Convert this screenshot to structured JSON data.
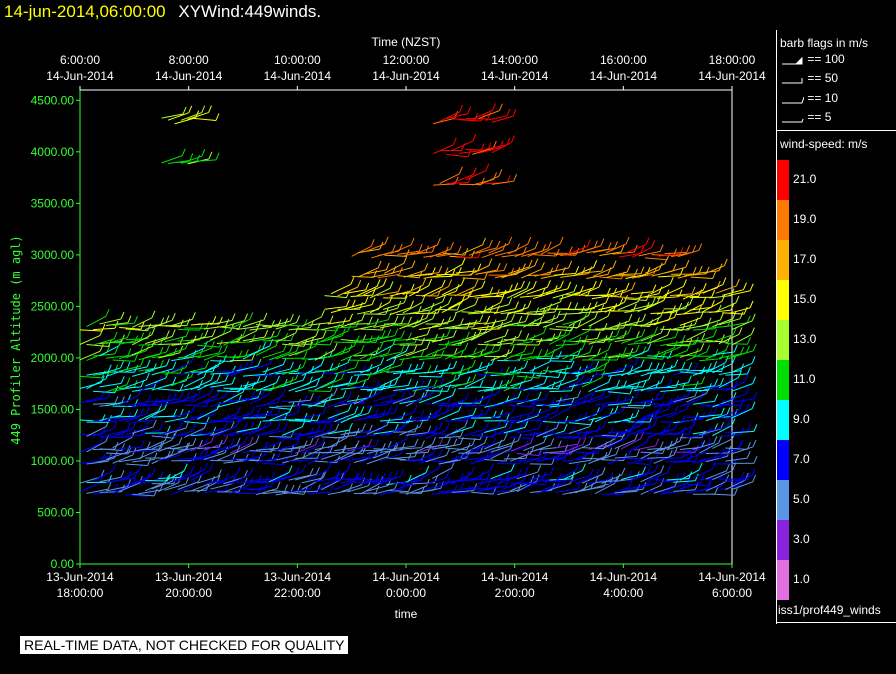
{
  "header": {
    "date": "14-jun-2014,06:00:00",
    "title": "XYWind:449winds."
  },
  "legend": {
    "barb_title": "barb flags in m/s",
    "barb_keys": [
      "== 100",
      "== 50",
      "== 10",
      "== 5"
    ],
    "speed_title": "wind-speed: m/s",
    "speed_levels": [
      {
        "label": "21.0",
        "color": "#ff0000"
      },
      {
        "label": "19.0",
        "color": "#ff7a00"
      },
      {
        "label": "17.0",
        "color": "#ffb000"
      },
      {
        "label": "15.0",
        "color": "#ffff00"
      },
      {
        "label": "13.0",
        "color": "#a8ff30"
      },
      {
        "label": "11.0",
        "color": "#00e000"
      },
      {
        "label": "9.0",
        "color": "#00ffff"
      },
      {
        "label": "7.0",
        "color": "#0000ff"
      },
      {
        "label": "5.0",
        "color": "#5a96e6"
      },
      {
        "label": "3.0",
        "color": "#8a20e0"
      },
      {
        "label": "1.0",
        "color": "#e070e0"
      }
    ],
    "dataset": "iss1/prof449_winds"
  },
  "notice": "REAL-TIME DATA, NOT CHECKED FOR QUALITY",
  "chart_data": {
    "type": "scatter",
    "title": "",
    "xlabel": "time",
    "x2label": "Time (NZST)",
    "ylabel": "449 Profiler Altitude (m agl)",
    "ylim": [
      0,
      4600
    ],
    "yticks": [
      "0.00",
      "500.00",
      "1000.00",
      "1500.00",
      "2000.00",
      "2500.00",
      "3000.00",
      "3500.00",
      "4000.00",
      "4500.00"
    ],
    "xticks_bottom": [
      [
        "13-Jun-2014",
        "18:00:00"
      ],
      [
        "13-Jun-2014",
        "20:00:00"
      ],
      [
        "13-Jun-2014",
        "22:00:00"
      ],
      [
        "14-Jun-2014",
        "0:00:00"
      ],
      [
        "14-Jun-2014",
        "2:00:00"
      ],
      [
        "14-Jun-2014",
        "4:00:00"
      ],
      [
        "14-Jun-2014",
        "6:00:00"
      ]
    ],
    "xticks_top": [
      [
        "6:00:00",
        "14-Jun-2014"
      ],
      [
        "8:00:00",
        "14-Jun-2014"
      ],
      [
        "10:00:00",
        "14-Jun-2014"
      ],
      [
        "12:00:00",
        "14-Jun-2014"
      ],
      [
        "14:00:00",
        "14-Jun-2014"
      ],
      [
        "16:00:00",
        "14-Jun-2014"
      ],
      [
        "18:00:00",
        "14-Jun-2014"
      ]
    ],
    "xlim_hours": [
      0,
      12
    ],
    "series": [
      {
        "x_start": 0.0,
        "x_end": 12.0,
        "y": 700,
        "speed": 6
      },
      {
        "x_start": 0.0,
        "x_end": 12.0,
        "y": 800,
        "speed": 7
      },
      {
        "x_start": 0.0,
        "x_end": 12.0,
        "y": 1000,
        "speed": 6
      },
      {
        "x_start": 0.0,
        "x_end": 12.0,
        "y": 1100,
        "speed": 5
      },
      {
        "x_start": 0.0,
        "x_end": 12.0,
        "y": 1250,
        "speed": 7
      },
      {
        "x_start": 0.0,
        "x_end": 12.0,
        "y": 1400,
        "speed": 8
      },
      {
        "x_start": 0.0,
        "x_end": 12.0,
        "y": 1550,
        "speed": 7
      },
      {
        "x_start": 0.0,
        "x_end": 12.0,
        "y": 1700,
        "speed": 9
      },
      {
        "x_start": 0.0,
        "x_end": 12.0,
        "y": 1850,
        "speed": 9
      },
      {
        "x_start": 0.0,
        "x_end": 12.0,
        "y": 2000,
        "speed": 11
      },
      {
        "x_start": 0.0,
        "x_end": 12.0,
        "y": 2150,
        "speed": 12
      },
      {
        "x_start": 0.0,
        "x_end": 12.0,
        "y": 2300,
        "speed": 13
      },
      {
        "x_start": 4.5,
        "x_end": 12.0,
        "y": 2450,
        "speed": 14
      },
      {
        "x_start": 4.5,
        "x_end": 12.0,
        "y": 2600,
        "speed": 15
      },
      {
        "x_start": 5.0,
        "x_end": 11.5,
        "y": 2800,
        "speed": 17
      },
      {
        "x_start": 5.0,
        "x_end": 11.0,
        "y": 3000,
        "speed": 19
      },
      {
        "x_start": 6.5,
        "x_end": 7.7,
        "y": 3700,
        "speed": 20
      },
      {
        "x_start": 6.5,
        "x_end": 7.7,
        "y": 4000,
        "speed": 21
      },
      {
        "x_start": 6.5,
        "x_end": 7.7,
        "y": 4300,
        "speed": 21
      },
      {
        "x_start": 1.5,
        "x_end": 2.2,
        "y": 3900,
        "speed": 12
      },
      {
        "x_start": 1.5,
        "x_end": 2.2,
        "y": 4300,
        "speed": 14
      }
    ]
  }
}
